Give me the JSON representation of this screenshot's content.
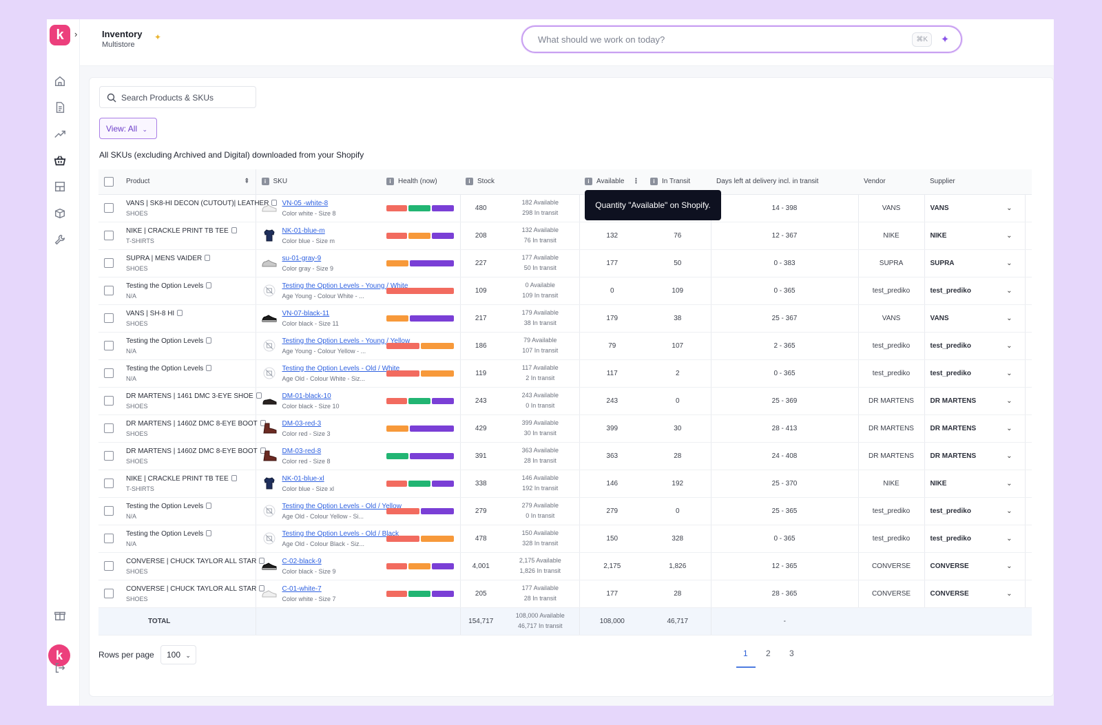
{
  "header": {
    "title": "Inventory",
    "subtitle": "Multistore",
    "ask_placeholder": "What should we work on today?",
    "shortcut": "⌘K"
  },
  "toolbar": {
    "search_placeholder": "Search Products & SKUs",
    "view_label": "View: All",
    "description": "All SKUs (excluding Archived and Digital) downloaded from your Shopify"
  },
  "columns": {
    "product": "Product",
    "sku": "SKU",
    "health": "Health (now)",
    "stock": "Stock",
    "available": "Available",
    "in_transit": "In Transit",
    "days_left": "Days left at delivery incl. in transit",
    "vendor": "Vendor",
    "supplier": "Supplier"
  },
  "tooltip": "Quantity \"Available\" on Shopify.",
  "colors": {
    "red": "#f26b5f",
    "orange": "#f7993a",
    "green": "#22b573",
    "purple": "#7a3fd6"
  },
  "rows": [
    {
      "product": "VANS | SK8-HI DECON (CUTOUT)| LEATHER",
      "category": "SHOES",
      "sku": "VN-05 -white-8",
      "variant": "Color white - Size 8",
      "thumb": "sneaker-white",
      "health": [
        [
          "red",
          30
        ],
        [
          "green",
          32
        ],
        [
          "purple",
          32
        ]
      ],
      "stock": "480",
      "stock_avail": "182 Available",
      "stock_transit": "298 In transit",
      "available": "",
      "in_transit": "",
      "days": "14 - 398",
      "vendor": "VANS",
      "supplier": "VANS"
    },
    {
      "product": "NIKE | CRACKLE PRINT TB TEE",
      "category": "T-SHIRTS",
      "sku": "NK-01-blue-m",
      "variant": "Color blue - Size m",
      "thumb": "tshirt-navy",
      "health": [
        [
          "red",
          30
        ],
        [
          "orange",
          32
        ],
        [
          "purple",
          32
        ]
      ],
      "stock": "208",
      "stock_avail": "132 Available",
      "stock_transit": "76 In transit",
      "available": "132",
      "in_transit": "76",
      "days": "12 - 367",
      "vendor": "NIKE",
      "supplier": "NIKE"
    },
    {
      "product": "SUPRA | MENS VAIDER",
      "category": "SHOES",
      "sku": "su-01-gray-9",
      "variant": "Color gray - Size 9",
      "thumb": "sneaker-gray",
      "health": [
        [
          "orange",
          32
        ],
        [
          "purple",
          64
        ]
      ],
      "stock": "227",
      "stock_avail": "177 Available",
      "stock_transit": "50 In transit",
      "available": "177",
      "in_transit": "50",
      "days": "0 - 383",
      "vendor": "SUPRA",
      "supplier": "SUPRA"
    },
    {
      "product": "Testing the Option Levels",
      "category": "N/A",
      "sku": "Testing the Option Levels - Young / White",
      "variant": "Age Young - Colour White - ...",
      "thumb": "placeholder",
      "health": [
        [
          "red",
          98
        ]
      ],
      "stock": "109",
      "stock_avail": "0 Available",
      "stock_transit": "109 In transit",
      "available": "0",
      "in_transit": "109",
      "days": "0 - 365",
      "vendor": "test_prediko",
      "supplier": "test_prediko"
    },
    {
      "product": "VANS | SH-8 HI",
      "category": "SHOES",
      "sku": "VN-07-black-11",
      "variant": "Color black - Size 11",
      "thumb": "sneaker-black",
      "health": [
        [
          "orange",
          32
        ],
        [
          "purple",
          64
        ]
      ],
      "stock": "217",
      "stock_avail": "179 Available",
      "stock_transit": "38 In transit",
      "available": "179",
      "in_transit": "38",
      "days": "25 - 367",
      "vendor": "VANS",
      "supplier": "VANS"
    },
    {
      "product": "Testing the Option Levels",
      "category": "N/A",
      "sku": "Testing the Option Levels - Young / Yellow",
      "variant": "Age Young - Colour Yellow - ...",
      "thumb": "placeholder",
      "health": [
        [
          "red",
          48
        ],
        [
          "orange",
          48
        ]
      ],
      "stock": "186",
      "stock_avail": "79 Available",
      "stock_transit": "107 In transit",
      "available": "79",
      "in_transit": "107",
      "days": "2 - 365",
      "vendor": "test_prediko",
      "supplier": "test_prediko"
    },
    {
      "product": "Testing the Option Levels",
      "category": "N/A",
      "sku": "Testing the Option Levels - Old / White",
      "variant": "Age Old - Colour White - Siz...",
      "thumb": "placeholder",
      "health": [
        [
          "red",
          48
        ],
        [
          "orange",
          48
        ]
      ],
      "stock": "119",
      "stock_avail": "117 Available",
      "stock_transit": "2 In transit",
      "available": "117",
      "in_transit": "2",
      "days": "0 - 365",
      "vendor": "test_prediko",
      "supplier": "test_prediko"
    },
    {
      "product": "DR MARTENS | 1461 DMC 3-EYE SHOE",
      "category": "SHOES",
      "sku": "DM-01-black-10",
      "variant": "Color black - Size 10",
      "thumb": "shoe-black",
      "health": [
        [
          "red",
          30
        ],
        [
          "green",
          32
        ],
        [
          "purple",
          32
        ]
      ],
      "stock": "243",
      "stock_avail": "243 Available",
      "stock_transit": "0 In transit",
      "available": "243",
      "in_transit": "0",
      "days": "25 - 369",
      "vendor": "DR MARTENS",
      "supplier": "DR MARTENS"
    },
    {
      "product": "DR MARTENS | 1460Z DMC 8-EYE BOOT",
      "category": "SHOES",
      "sku": "DM-03-red-3",
      "variant": "Color red - Size 3",
      "thumb": "boot-red",
      "health": [
        [
          "orange",
          32
        ],
        [
          "purple",
          64
        ]
      ],
      "stock": "429",
      "stock_avail": "399 Available",
      "stock_transit": "30 In transit",
      "available": "399",
      "in_transit": "30",
      "days": "28 - 413",
      "vendor": "DR MARTENS",
      "supplier": "DR MARTENS"
    },
    {
      "product": "DR MARTENS | 1460Z DMC 8-EYE BOOT",
      "category": "SHOES",
      "sku": "DM-03-red-8",
      "variant": "Color red - Size 8",
      "thumb": "boot-red",
      "health": [
        [
          "green",
          32
        ],
        [
          "purple",
          64
        ]
      ],
      "stock": "391",
      "stock_avail": "363 Available",
      "stock_transit": "28 In transit",
      "available": "363",
      "in_transit": "28",
      "days": "24 - 408",
      "vendor": "DR MARTENS",
      "supplier": "DR MARTENS"
    },
    {
      "product": "NIKE | CRACKLE PRINT TB TEE",
      "category": "T-SHIRTS",
      "sku": "NK-01-blue-xl",
      "variant": "Color blue - Size xl",
      "thumb": "tshirt-navy",
      "health": [
        [
          "red",
          30
        ],
        [
          "green",
          32
        ],
        [
          "purple",
          32
        ]
      ],
      "stock": "338",
      "stock_avail": "146 Available",
      "stock_transit": "192 In transit",
      "available": "146",
      "in_transit": "192",
      "days": "25 - 370",
      "vendor": "NIKE",
      "supplier": "NIKE"
    },
    {
      "product": "Testing the Option Levels",
      "category": "N/A",
      "sku": "Testing the Option Levels - Old / Yellow",
      "variant": "Age Old - Colour Yellow - Si...",
      "thumb": "placeholder",
      "health": [
        [
          "red",
          48
        ],
        [
          "purple",
          48
        ]
      ],
      "stock": "279",
      "stock_avail": "279 Available",
      "stock_transit": "0 In transit",
      "available": "279",
      "in_transit": "0",
      "days": "25 - 365",
      "vendor": "test_prediko",
      "supplier": "test_prediko"
    },
    {
      "product": "Testing the Option Levels",
      "category": "N/A",
      "sku": "Testing the Option Levels - Old / Black",
      "variant": "Age Old - Colour Black - Siz...",
      "thumb": "placeholder",
      "health": [
        [
          "red",
          48
        ],
        [
          "orange",
          48
        ]
      ],
      "stock": "478",
      "stock_avail": "150 Available",
      "stock_transit": "328 In transit",
      "available": "150",
      "in_transit": "328",
      "days": "0 - 365",
      "vendor": "test_prediko",
      "supplier": "test_prediko"
    },
    {
      "product": "CONVERSE | CHUCK TAYLOR ALL STAR",
      "category": "SHOES",
      "sku": "C-02-black-9",
      "variant": "Color black - Size 9",
      "thumb": "sneaker-black",
      "health": [
        [
          "red",
          30
        ],
        [
          "orange",
          32
        ],
        [
          "purple",
          32
        ]
      ],
      "stock": "4,001",
      "stock_avail": "2,175 Available",
      "stock_transit": "1,826 In transit",
      "available": "2,175",
      "in_transit": "1,826",
      "days": "12 - 365",
      "vendor": "CONVERSE",
      "supplier": "CONVERSE"
    },
    {
      "product": "CONVERSE | CHUCK TAYLOR ALL STAR",
      "category": "SHOES",
      "sku": "C-01-white-7",
      "variant": "Color white - Size 7",
      "thumb": "sneaker-white",
      "health": [
        [
          "red",
          30
        ],
        [
          "green",
          32
        ],
        [
          "purple",
          32
        ]
      ],
      "stock": "205",
      "stock_avail": "177 Available",
      "stock_transit": "28 In transit",
      "available": "177",
      "in_transit": "28",
      "days": "28 - 365",
      "vendor": "CONVERSE",
      "supplier": "CONVERSE"
    }
  ],
  "total": {
    "label": "TOTAL",
    "stock": "154,717",
    "stock_avail": "108,000 Available",
    "stock_transit": "46,717 In transit",
    "available": "108,000",
    "in_transit": "46,717",
    "days": "-"
  },
  "pagination": {
    "rows_per_page_label": "Rows per page",
    "rows_per_page": "100",
    "pages": [
      "1",
      "2",
      "3"
    ],
    "current": "1"
  }
}
